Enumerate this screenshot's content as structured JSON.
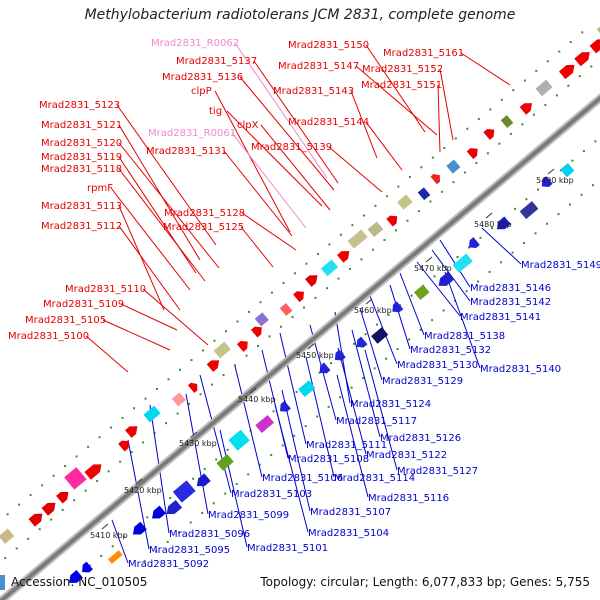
{
  "title": "Methylobacterium radiotolerans JCM 2831, complete genome",
  "footer": {
    "accession": "Accession: NC_010505",
    "summary": "Topology: circular; Length: 6,077,833 bp; Genes: 5,755"
  },
  "colors": {
    "forward_label": "#e60000",
    "reverse_label": "#0000cc",
    "rna_label": "#ee88cc",
    "backbone": "#909090"
  },
  "scale_ticks": [
    "5410 kbp",
    "5420 kbp",
    "5430 kbp",
    "5440 kbp",
    "5450 kbp",
    "5460 kbp",
    "5470 kbp",
    "5480 kbp",
    "5490 kbp"
  ],
  "upper_labels": [
    "Mrad2831_R0062",
    "Mrad2831_5150",
    "Mrad2831_5161",
    "Mrad2831_5137",
    "Mrad2831_5147",
    "Mrad2831_5152",
    "Mrad2831_5136",
    "Mrad2831_5151",
    "clpP",
    "Mrad2831_5143",
    "tig",
    "clpX",
    "Mrad2831_5144",
    "Mrad2831_5123",
    "Mrad2831_5121",
    "Mrad2831_R0061",
    "Mrad2831_5120",
    "Mrad2831_5139",
    "Mrad2831_5131",
    "Mrad2831_5119",
    "Mrad2831_5118",
    "rpmF",
    "Mrad2831_5113",
    "Mrad2831_5128",
    "Mrad2831_5112",
    "Mrad2831_5125",
    "Mrad2831_5110",
    "Mrad2831_5109",
    "Mrad2831_5105",
    "Mrad2831_5100"
  ],
  "lower_labels": [
    "Mrad2831_5149",
    "Mrad2831_5146",
    "Mrad2831_5142",
    "Mrad2831_5141",
    "Mrad2831_5138",
    "Mrad2831_5132",
    "Mrad2831_5130",
    "Mrad2831_5140",
    "Mrad2831_5129",
    "Mrad2831_5124",
    "Mrad2831_5117",
    "Mrad2831_5126",
    "Mrad2831_5111",
    "Mrad2831_5122",
    "Mrad2831_5108",
    "Mrad2831_5127",
    "Mrad2831_5106",
    "Mrad2831_5114",
    "Mrad2831_5116",
    "Mrad2831_5103",
    "Mrad2831_5107",
    "Mrad2831_5099",
    "Mrad2831_5104",
    "Mrad2831_5096",
    "Mrad2831_5101",
    "Mrad2831_5095",
    "Mrad2831_5092"
  ]
}
